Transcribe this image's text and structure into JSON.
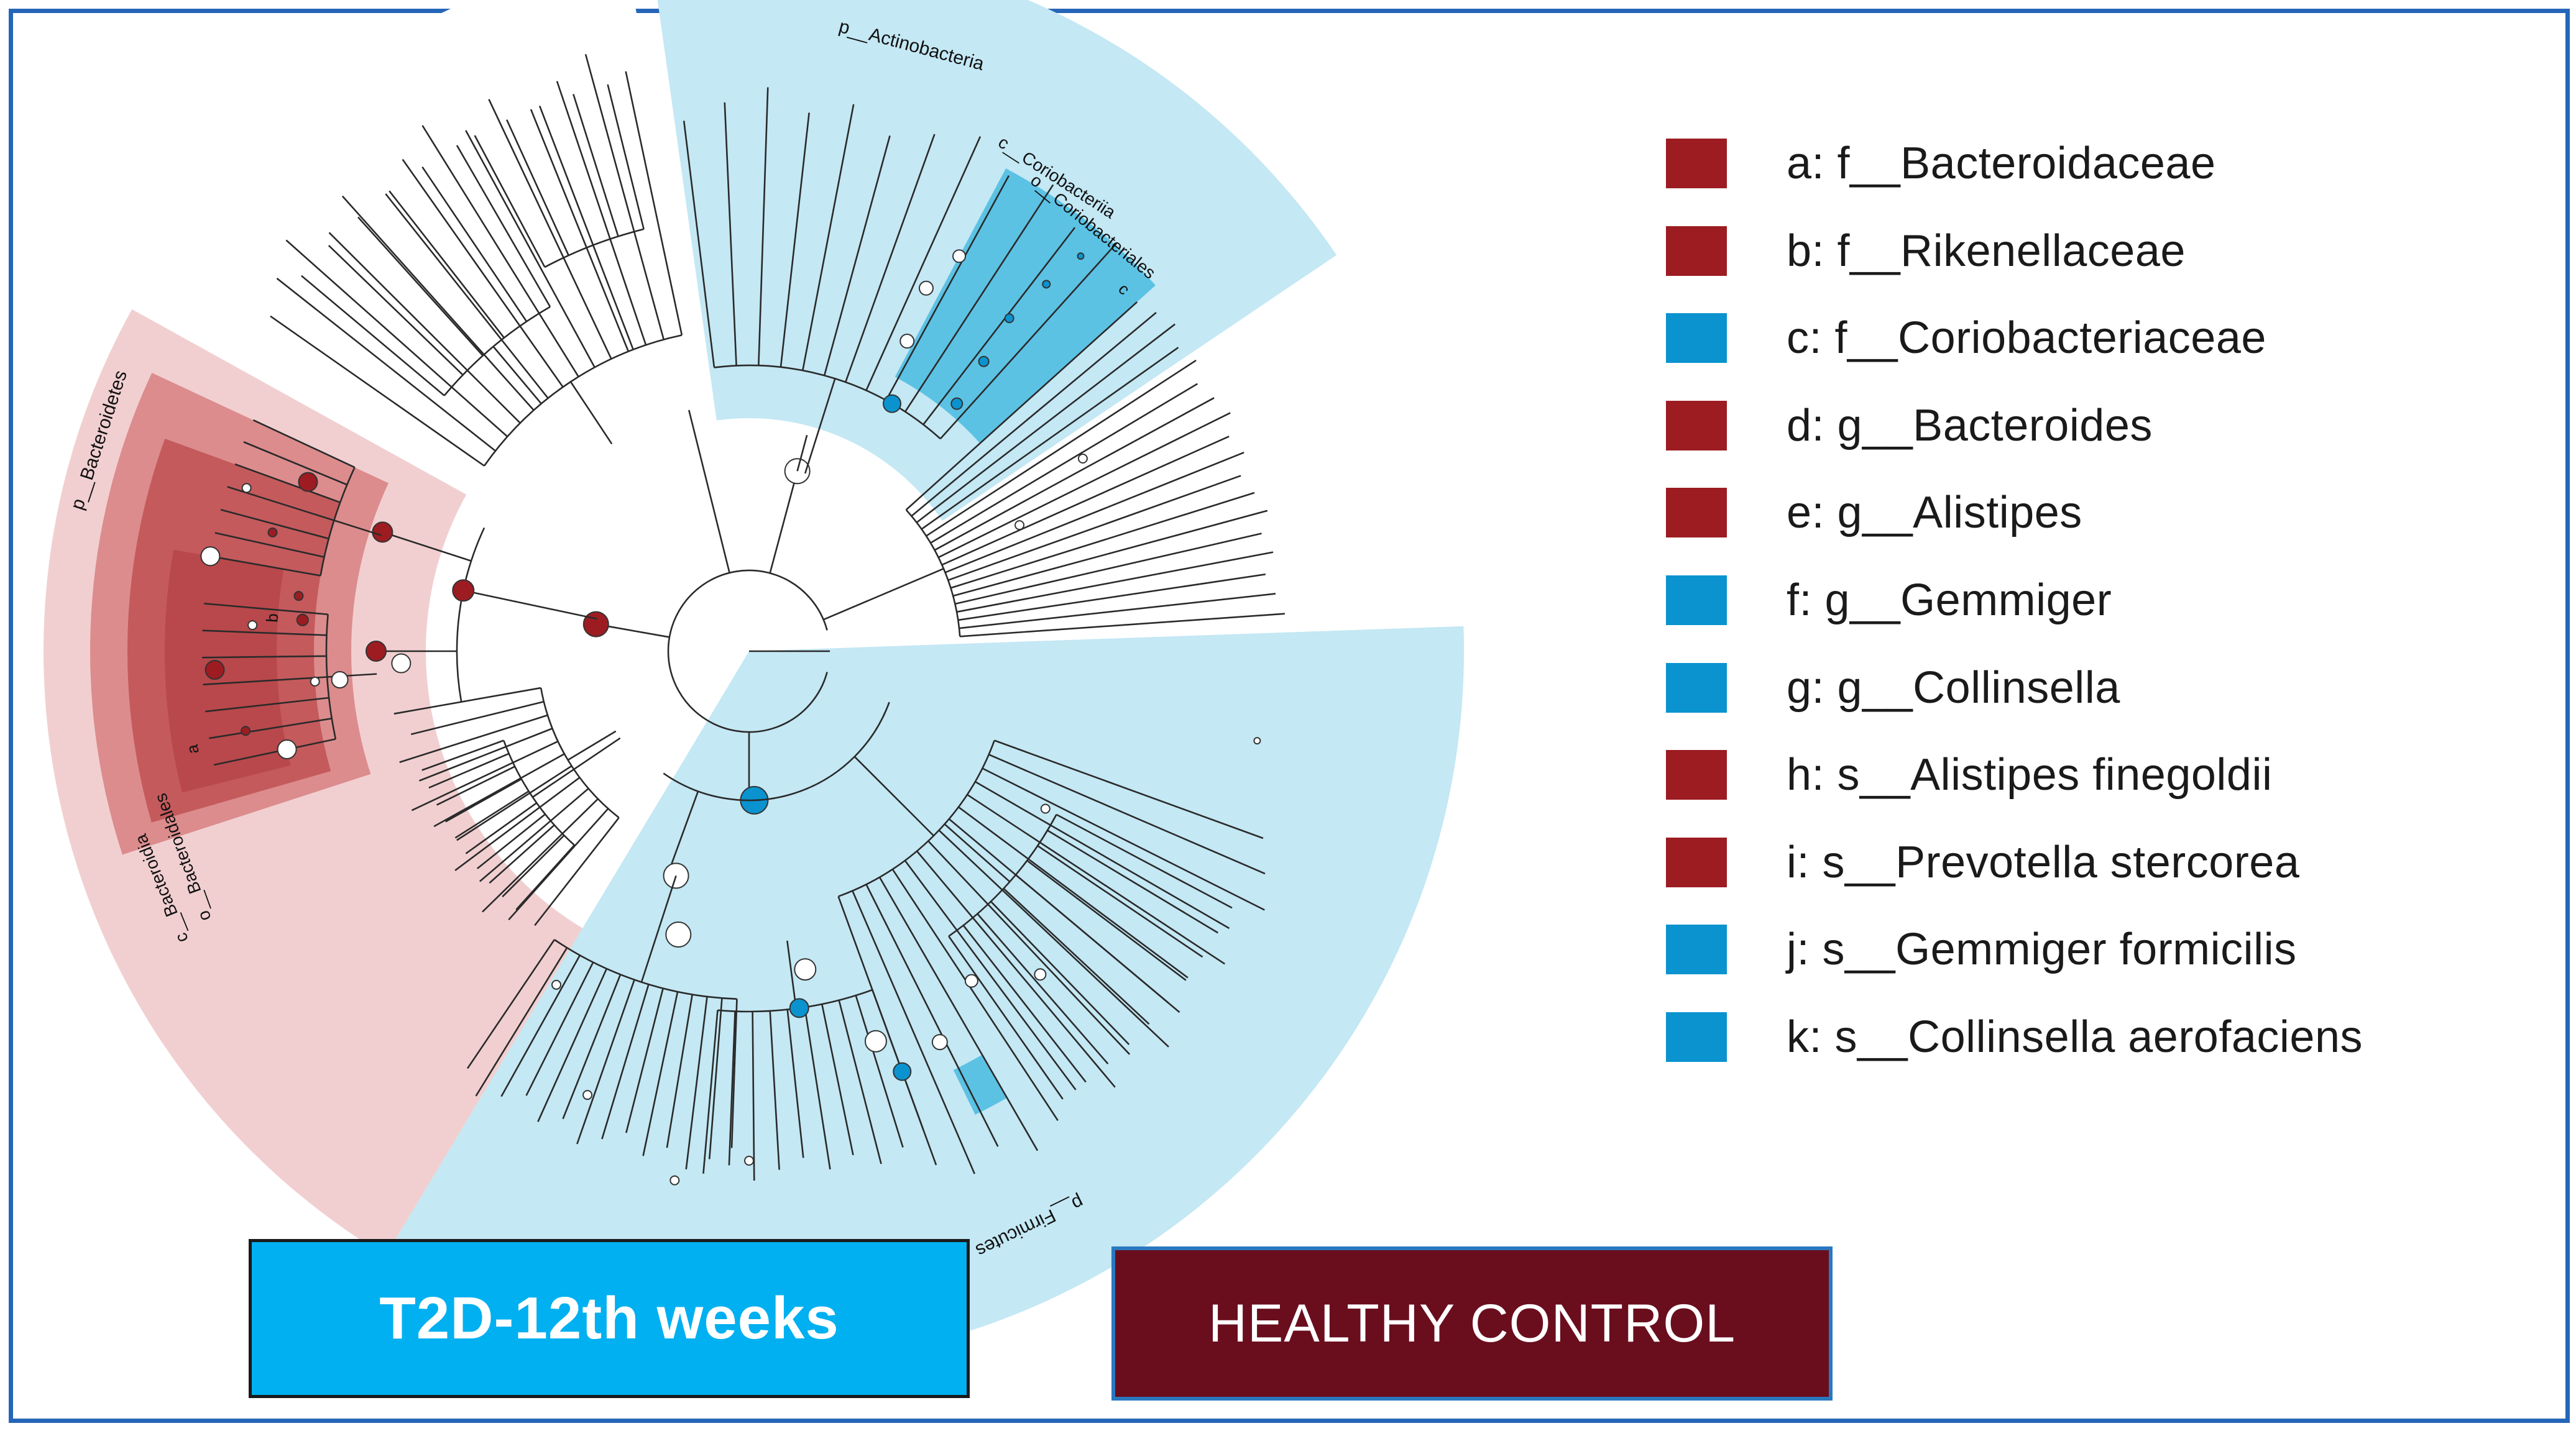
{
  "colors": {
    "red": "#9c1c22",
    "blue": "#0a93cf",
    "red_shade_light": "#f1cfd0",
    "red_shade_mid": "#dc8c8d",
    "red_shade_dark": "#c45a5c",
    "blue_shade": "#c4e8f4",
    "blue_shade_dark": "#5cc2e4",
    "t2d_box": "#00b0f0",
    "hc_box": "#6a0e1e"
  },
  "clade_labels": {
    "actinobacteria": "p__Actinobacteria",
    "coriobacteriia": "c__Coriobacteriia",
    "coriobacteriales": "o__Coriobacteriales",
    "bacteroidetes": "p__Bacteroidetes",
    "bacteroidales": "o__Bacteroidales",
    "bacteroidia": "c__Bacteroidia",
    "firmicutes": "p__Firmicutes",
    "node_a": "a",
    "node_b": "b",
    "node_c": "c"
  },
  "legend": [
    {
      "key": "a",
      "text": "a: f__Bacteroidaceae",
      "group": "healthy_control"
    },
    {
      "key": "b",
      "text": "b: f__Rikenellaceae",
      "group": "healthy_control"
    },
    {
      "key": "c",
      "text": "c: f__Coriobacteriaceae",
      "group": "t2d"
    },
    {
      "key": "d",
      "text": "d: g__Bacteroides",
      "group": "healthy_control"
    },
    {
      "key": "e",
      "text": "e: g__Alistipes",
      "group": "healthy_control"
    },
    {
      "key": "f",
      "text": "f: g__Gemmiger",
      "group": "t2d"
    },
    {
      "key": "g",
      "text": "g: g__Collinsella",
      "group": "t2d"
    },
    {
      "key": "h",
      "text": "h: s__Alistipes finegoldii",
      "group": "healthy_control"
    },
    {
      "key": "i",
      "text": "i: s__Prevotella stercorea",
      "group": "healthy_control"
    },
    {
      "key": "j",
      "text": "j: s__Gemmiger formicilis",
      "group": "t2d"
    },
    {
      "key": "k",
      "text": "k: s__Collinsella aerofaciens",
      "group": "t2d"
    }
  ],
  "groups": {
    "t2d_label": "T2D-12th weeks",
    "hc_label": "HEALTHY CONTROL"
  }
}
